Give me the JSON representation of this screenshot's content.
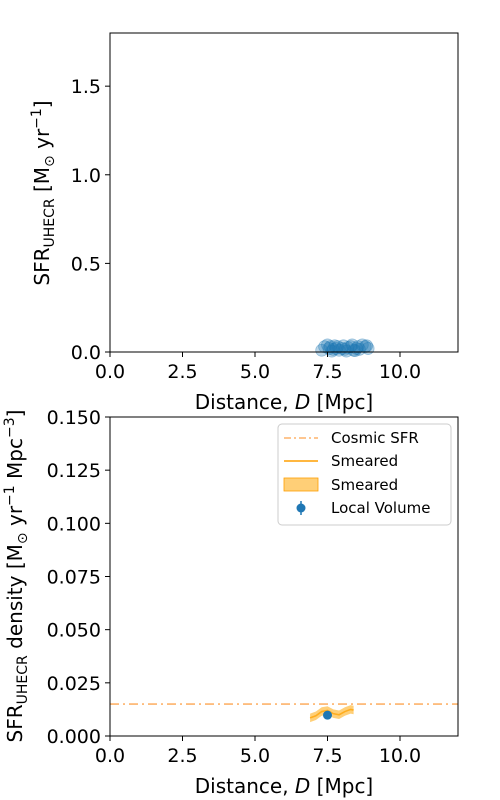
{
  "chart_data": [
    {
      "type": "scatter",
      "xlabel": "Distance, D  [Mpc]",
      "xlabel_parts": {
        "main": "Distance, ",
        "var": "D",
        "unit": "  [Mpc]"
      },
      "ylabel": "SFR_UHECR [M_⊙ yr^-1]",
      "ylabel_parts": {
        "main": "SFR",
        "sub": "UHECR",
        "open": " [M",
        "sun": "⊙",
        "yr": " yr",
        "exp": "−1",
        "close": "]"
      },
      "xlim": [
        0,
        12
      ],
      "ylim": [
        0,
        1.8
      ],
      "xticks": [
        0.0,
        2.5,
        5.0,
        7.5,
        10.0
      ],
      "xtick_labels": [
        "0.0",
        "2.5",
        "5.0",
        "7.5",
        "10.0"
      ],
      "yticks": [
        0.0,
        0.5,
        1.0,
        1.5
      ],
      "ytick_labels": [
        "0.0",
        "0.5",
        "1.0",
        "1.5"
      ],
      "color": "#1f77b4",
      "points": [
        [
          7.3,
          0.01
        ],
        [
          7.4,
          0.03
        ],
        [
          7.5,
          0.04
        ],
        [
          7.55,
          0.02
        ],
        [
          7.6,
          0.03
        ],
        [
          7.7,
          0.015
        ],
        [
          7.75,
          0.035
        ],
        [
          7.8,
          0.02
        ],
        [
          7.85,
          0.03
        ],
        [
          7.9,
          0.01
        ],
        [
          8.0,
          0.02
        ],
        [
          8.05,
          0.035
        ],
        [
          8.1,
          0.015
        ],
        [
          8.2,
          0.025
        ],
        [
          8.3,
          0.03
        ],
        [
          8.35,
          0.04
        ],
        [
          8.4,
          0.01
        ],
        [
          8.5,
          0.02
        ],
        [
          8.55,
          0.03
        ],
        [
          8.6,
          0.015
        ],
        [
          8.7,
          0.04
        ],
        [
          8.8,
          0.03
        ],
        [
          8.85,
          0.035
        ],
        [
          8.9,
          0.02
        ],
        [
          7.65,
          0.005
        ],
        [
          8.15,
          0.005
        ],
        [
          8.45,
          0.008
        ]
      ]
    },
    {
      "type": "line",
      "xlabel": "Distance, D  [Mpc]",
      "xlabel_parts": {
        "main": "Distance, ",
        "var": "D",
        "unit": "  [Mpc]"
      },
      "ylabel": "SFR_UHECR density [M_⊙ yr^-1 Mpc^-3]",
      "ylabel_parts": {
        "main": "SFR",
        "sub": "UHECR",
        "rest": " density [M",
        "sun": "⊙",
        "yr": " yr",
        "exp1": "−1",
        "mpc": " Mpc",
        "exp2": "−3",
        "close": "]"
      },
      "xlim": [
        0,
        12
      ],
      "ylim": [
        0,
        0.15
      ],
      "xticks": [
        0.0,
        2.5,
        5.0,
        7.5,
        10.0
      ],
      "xtick_labels": [
        "0.0",
        "2.5",
        "5.0",
        "7.5",
        "10.0"
      ],
      "yticks": [
        0.0,
        0.025,
        0.05,
        0.075,
        0.1,
        0.125,
        0.15
      ],
      "ytick_labels": [
        "0.000",
        "0.025",
        "0.050",
        "0.075",
        "0.100",
        "0.125",
        "0.150"
      ],
      "legend_position": "top-right",
      "legend": [
        "Cosmic SFR",
        "Smeared",
        "Smeared",
        "Local Volume"
      ],
      "series": [
        {
          "name": "Cosmic SFR",
          "style": "dash-dot",
          "color": "#fdb36b",
          "x": [
            0,
            12
          ],
          "y": [
            0.015,
            0.015
          ]
        },
        {
          "name": "Smeared",
          "style": "solid",
          "color": "#ff9f00",
          "x": [
            6.9,
            7.1,
            7.3,
            7.5,
            7.7,
            7.9,
            8.1,
            8.3,
            8.4
          ],
          "y": [
            0.0085,
            0.0095,
            0.0115,
            0.012,
            0.0105,
            0.01,
            0.0115,
            0.0125,
            0.0122
          ]
        },
        {
          "name": "Smeared",
          "style": "band",
          "color": "#ffb52e",
          "x": [
            6.9,
            7.1,
            7.3,
            7.5,
            7.7,
            7.9,
            8.1,
            8.3,
            8.4
          ],
          "y_low": [
            0.0065,
            0.0075,
            0.0095,
            0.01,
            0.0085,
            0.008,
            0.0095,
            0.0105,
            0.0102
          ],
          "y_high": [
            0.0105,
            0.0115,
            0.0135,
            0.014,
            0.0125,
            0.012,
            0.0135,
            0.0145,
            0.0142
          ]
        },
        {
          "name": "Local Volume",
          "style": "errorbar",
          "color": "#1f77b4",
          "x": [
            7.5
          ],
          "y": [
            0.0098
          ],
          "yerr": [
            0.0018
          ]
        }
      ]
    }
  ]
}
